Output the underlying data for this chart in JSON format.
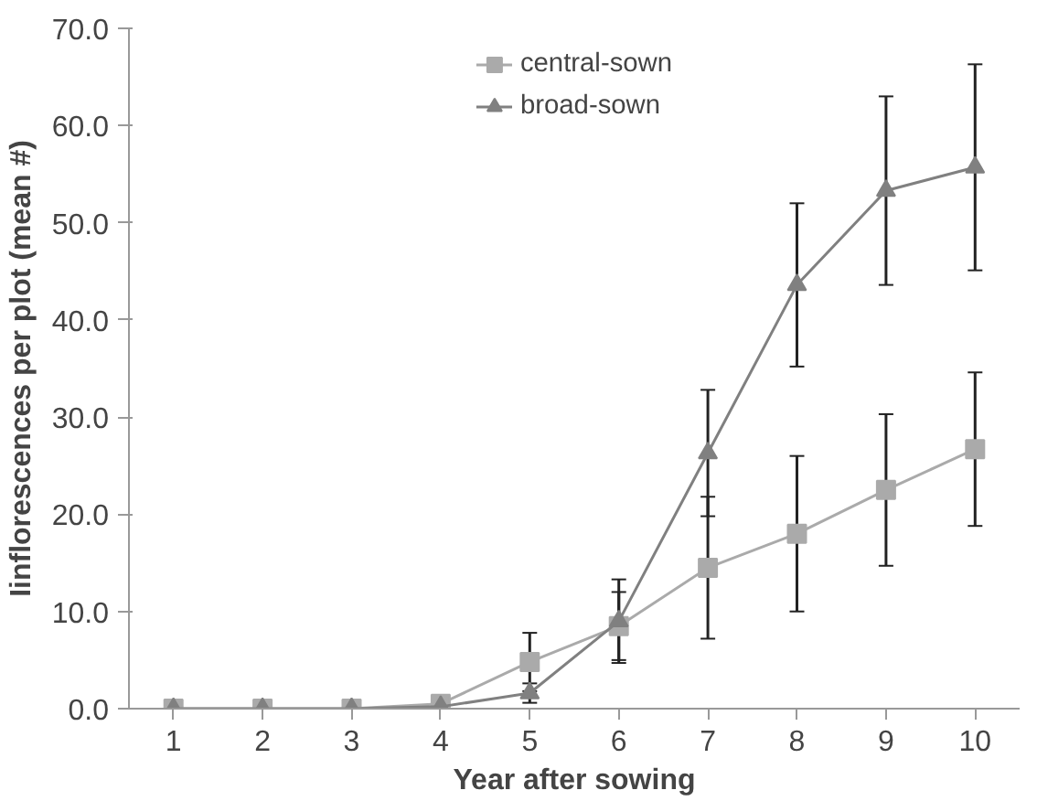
{
  "chart_data": {
    "type": "line",
    "xlabel": "Year after sowing",
    "ylabel": "Iinflorescences per plot (mean #)",
    "categories": [
      "1",
      "2",
      "3",
      "4",
      "5",
      "6",
      "7",
      "8",
      "9",
      "10"
    ],
    "series": [
      {
        "name": "central-sown",
        "color": "#aaaaaa",
        "marker": "square",
        "values": [
          0,
          0,
          0,
          0.5,
          4.8,
          8.5,
          14.5,
          18.0,
          22.5,
          26.7
        ],
        "errors": [
          null,
          null,
          null,
          null,
          3.0,
          3.5,
          7.3,
          8.0,
          7.8,
          7.9
        ]
      },
      {
        "name": "broad-sown",
        "color": "#808080",
        "marker": "triangle",
        "values": [
          0,
          0,
          0,
          0.2,
          1.6,
          9.0,
          26.3,
          43.6,
          53.3,
          55.7
        ],
        "errors": [
          null,
          null,
          null,
          null,
          1.0,
          4.3,
          6.5,
          8.4,
          9.7,
          10.6
        ]
      }
    ],
    "ylim": [
      0,
      70
    ],
    "yticks": [
      {
        "value": 0,
        "label": "0.0"
      },
      {
        "value": 10,
        "label": "10.0"
      },
      {
        "value": 20,
        "label": "20.0"
      },
      {
        "value": 30,
        "label": "30.0"
      },
      {
        "value": 40,
        "label": "40.0"
      },
      {
        "value": 50,
        "label": "50.0"
      },
      {
        "value": 60,
        "label": "60.0"
      },
      {
        "value": 70,
        "label": "70.0"
      }
    ],
    "grid": false,
    "legend": "top",
    "line_style": "solid"
  }
}
